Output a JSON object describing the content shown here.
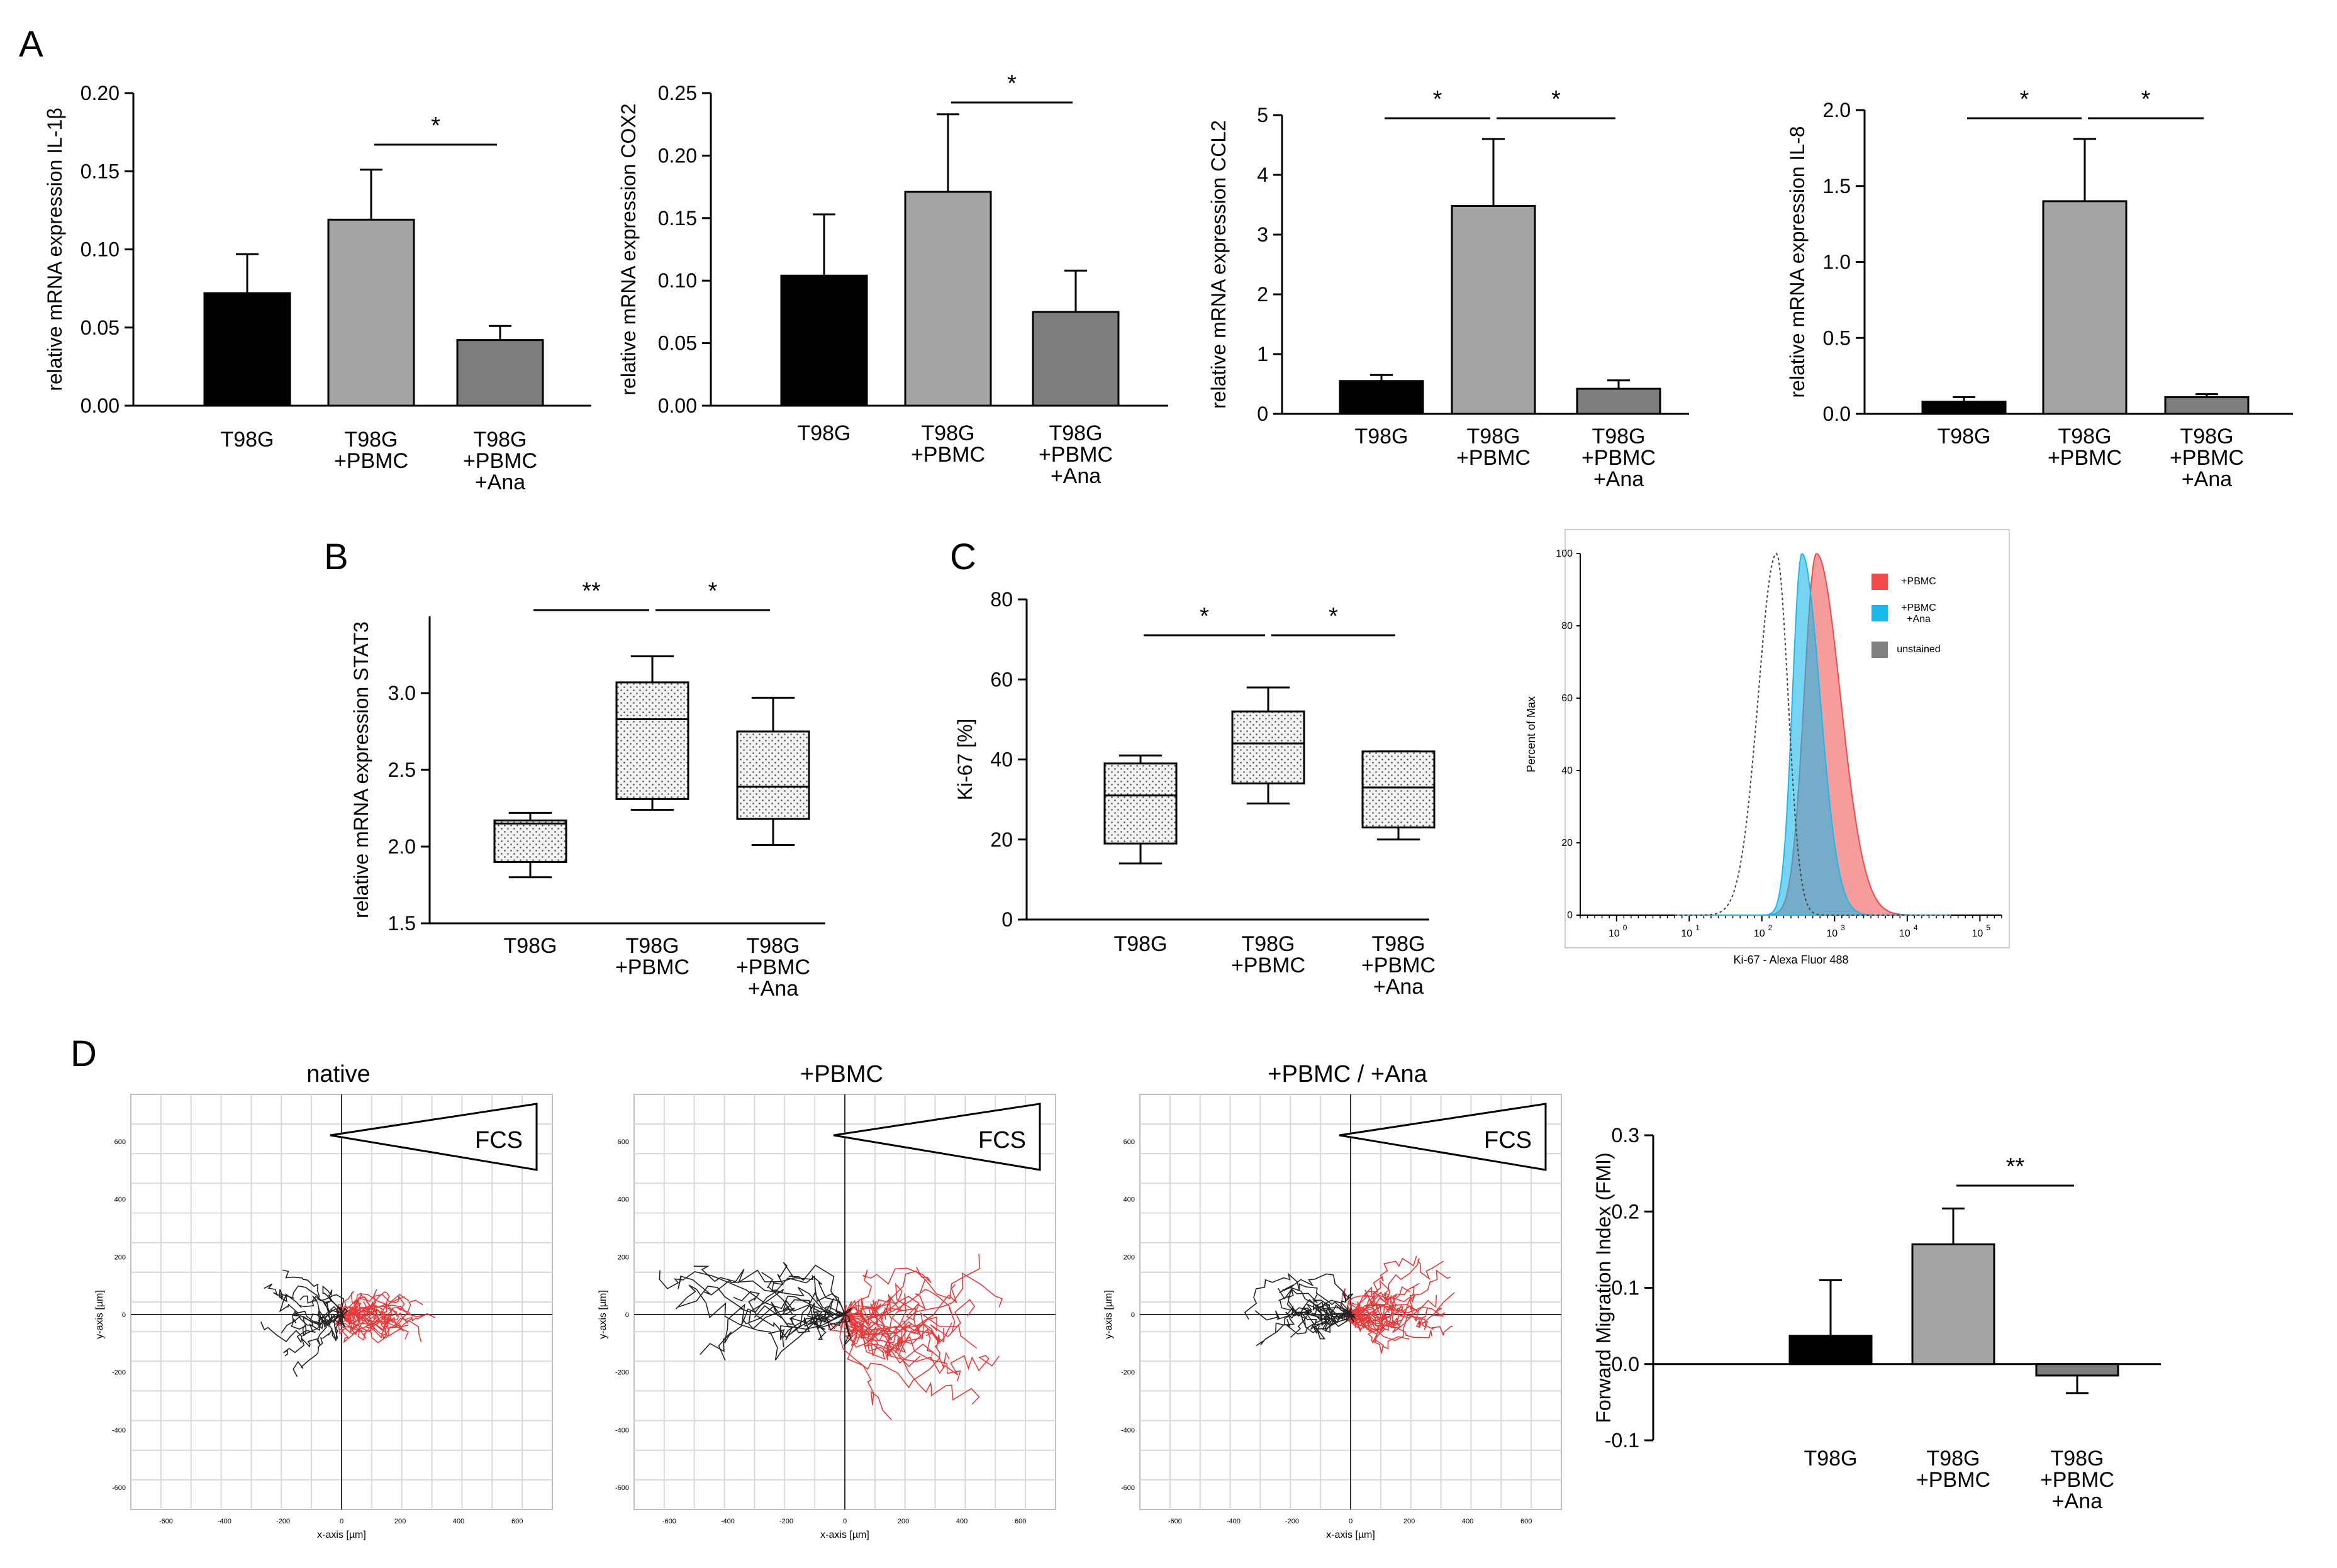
{
  "panels": {
    "A": "A",
    "B": "B",
    "C": "C",
    "D": "D"
  },
  "categories3": [
    "T98G",
    "T98G\n+PBMC",
    "T98G\n+PBMC\n+Ana"
  ],
  "colors": {
    "black": "#000000",
    "lightgray": "#a3a4a6",
    "midgray": "#7c7d7f",
    "red": "#f04a4a",
    "cyan": "#1db8ea",
    "gray": "#808080"
  },
  "chart_data": [
    {
      "id": "A1",
      "type": "bar",
      "ylabel": "relative mRNA expression IL-1β",
      "ylim": [
        0,
        0.2
      ],
      "yticks": [
        "0.00",
        "0.05",
        "0.10",
        "0.15",
        "0.20"
      ],
      "categories": [
        "T98G",
        "T98G\n+PBMC",
        "T98G\n+PBMC\n+Ana"
      ],
      "values": [
        0.072,
        0.119,
        0.042
      ],
      "errors": [
        0.025,
        0.032,
        0.009
      ],
      "significance": [
        {
          "from": 1,
          "to": 2,
          "label": "*"
        }
      ]
    },
    {
      "id": "A2",
      "type": "bar",
      "ylabel": "relative mRNA expression COX2",
      "ylim": [
        0,
        0.25
      ],
      "yticks": [
        "0.00",
        "0.05",
        "0.10",
        "0.15",
        "0.20",
        "0.25"
      ],
      "categories": [
        "T98G",
        "T98G\n+PBMC",
        "T98G\n+PBMC\n+Ana"
      ],
      "values": [
        0.104,
        0.171,
        0.075
      ],
      "errors": [
        0.049,
        0.062,
        0.033
      ],
      "significance": [
        {
          "from": 1,
          "to": 2,
          "label": "*"
        }
      ]
    },
    {
      "id": "A3",
      "type": "bar",
      "ylabel": "relative mRNA expression CCL2",
      "ylim": [
        0,
        5
      ],
      "yticks": [
        "0",
        "1",
        "2",
        "3",
        "4",
        "5"
      ],
      "categories": [
        "T98G",
        "T98G\n+PBMC",
        "T98G\n+PBMC\n+Ana"
      ],
      "values": [
        0.55,
        3.48,
        0.42
      ],
      "errors": [
        0.1,
        1.12,
        0.14
      ],
      "significance": [
        {
          "from": 0,
          "to": 1,
          "label": "*"
        },
        {
          "from": 1,
          "to": 2,
          "label": "*"
        }
      ]
    },
    {
      "id": "A4",
      "type": "bar",
      "ylabel": "relative mRNA expression IL-8",
      "ylim": [
        0,
        2
      ],
      "yticks": [
        "0.0",
        "0.5",
        "1.0",
        "1.5",
        "2.0"
      ],
      "categories": [
        "T98G",
        "T98G\n+PBMC",
        "T98G\n+PBMC\n+Ana"
      ],
      "values": [
        0.08,
        1.4,
        0.11
      ],
      "errors": [
        0.03,
        0.41,
        0.02
      ],
      "significance": [
        {
          "from": 0,
          "to": 1,
          "label": "*"
        },
        {
          "from": 1,
          "to": 2,
          "label": "*"
        }
      ]
    },
    {
      "id": "B",
      "type": "box",
      "ylabel": "relative mRNA expression STAT3",
      "ylim": [
        1.5,
        3.5
      ],
      "yticks": [
        "1.5",
        "2.0",
        "2.5",
        "3.0"
      ],
      "categories": [
        "T98G",
        "T98G\n+PBMC",
        "T98G\n+PBMC\n+Ana"
      ],
      "boxes": [
        {
          "min": 1.8,
          "q1": 1.9,
          "median": 2.15,
          "q3": 2.17,
          "max": 2.22
        },
        {
          "min": 2.24,
          "q1": 2.31,
          "median": 2.83,
          "q3": 3.07,
          "max": 3.24
        },
        {
          "min": 2.01,
          "q1": 2.18,
          "median": 2.39,
          "q3": 2.75,
          "max": 2.97
        }
      ],
      "significance": [
        {
          "from": 0,
          "to": 1,
          "label": "**"
        },
        {
          "from": 1,
          "to": 2,
          "label": "*"
        }
      ]
    },
    {
      "id": "C",
      "type": "box",
      "ylabel": "Ki-67 [%]",
      "ylim": [
        0,
        80
      ],
      "yticks": [
        "0",
        "20",
        "40",
        "60",
        "80"
      ],
      "categories": [
        "T98G",
        "T98G\n+PBMC",
        "T98G\n+PBMC\n+Ana"
      ],
      "boxes": [
        {
          "min": 14,
          "q1": 19,
          "median": 31,
          "q3": 39,
          "max": 41
        },
        {
          "min": 29,
          "q1": 34,
          "median": 44,
          "q3": 52,
          "max": 58
        },
        {
          "min": 20,
          "q1": 23,
          "median": 33,
          "q3": 42,
          "max": 42
        }
      ],
      "significance": [
        {
          "from": 0,
          "to": 1,
          "label": "*"
        },
        {
          "from": 1,
          "to": 2,
          "label": "*"
        }
      ]
    },
    {
      "id": "C-hist",
      "type": "area",
      "xlabel": "Ki-67 - Alexa Fluor 488",
      "ylabel": "Percent of Max",
      "yticks": [
        "0",
        "20",
        "40",
        "60",
        "80",
        "100"
      ],
      "xticks": [
        "10",
        "10",
        "10",
        "10",
        "10",
        "10"
      ],
      "xtick_exp": [
        "0",
        "1",
        "2",
        "3",
        "4",
        "5"
      ],
      "legend": [
        "+PBMC",
        "+PBMC\n+Ana",
        "unstained"
      ],
      "series": [
        {
          "name": "+PBMC",
          "peak_log10": 2.75,
          "spread": 0.33
        },
        {
          "name": "+PBMC +Ana",
          "peak_log10": 2.55,
          "spread": 0.25
        },
        {
          "name": "unstained",
          "peak_log10": 2.2,
          "spread": 0.25
        }
      ]
    },
    {
      "id": "D-bar",
      "type": "bar",
      "ylabel": "Forward Migration Index (FMI)",
      "ylim": [
        -0.1,
        0.3
      ],
      "yticks": [
        "-0.1",
        "0.0",
        "0.1",
        "0.2",
        "0.3"
      ],
      "categories": [
        "T98G",
        "T98G\n+PBMC",
        "T98G\n+PBMC\n+Ana"
      ],
      "values": [
        0.037,
        0.157,
        -0.015
      ],
      "errors": [
        0.073,
        0.047,
        0.023
      ],
      "significance": [
        {
          "from": 1,
          "to": 2,
          "label": "**"
        }
      ]
    }
  ],
  "trajectory": {
    "titles": [
      "native",
      "+PBMC",
      "+PBMC / +Ana"
    ],
    "gradient_label": "FCS",
    "xlabel": "x-axis [µm]",
    "ylabel": "y-axis [µm]",
    "ticks": [
      "-600",
      "-400",
      "-200",
      "0",
      "200",
      "400",
      "600"
    ]
  }
}
